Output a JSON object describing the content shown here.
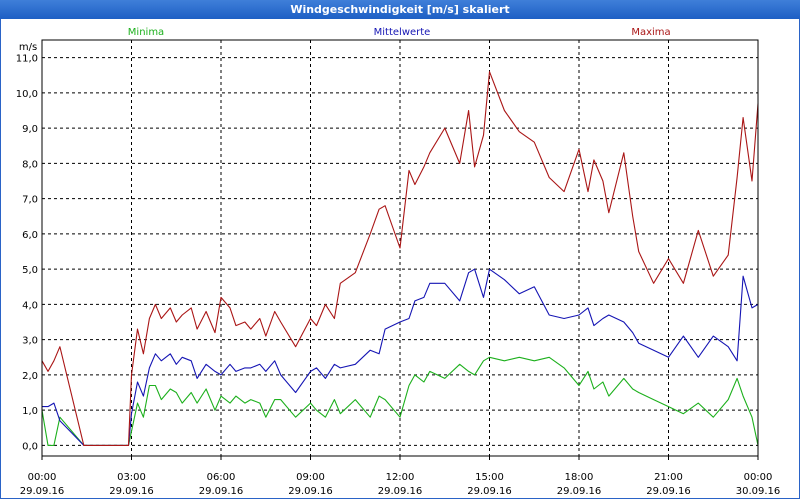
{
  "window": {
    "title": "Windgeschwindigkeit [m/s] skaliert"
  },
  "colors": {
    "minima": "#1db01d",
    "mittelwerte": "#1515b4",
    "maxima": "#aa1616",
    "grid": "#000000"
  },
  "chart_data": {
    "type": "line",
    "title": "Windgeschwindigkeit [m/s] skaliert",
    "ylabel": "m/s",
    "xlabel": "",
    "ylim": [
      -0.3,
      11.5
    ],
    "xlim": [
      0,
      24
    ],
    "grid": true,
    "legend": "top",
    "yticks": [
      "0,0",
      "1,0",
      "2,0",
      "3,0",
      "4,0",
      "5,0",
      "6,0",
      "7,0",
      "8,0",
      "9,0",
      "10,0",
      "11,0"
    ],
    "xticks": [
      {
        "time": "00:00",
        "date": "29.09.16"
      },
      {
        "time": "03:00",
        "date": "29.09.16"
      },
      {
        "time": "06:00",
        "date": "29.09.16"
      },
      {
        "time": "09:00",
        "date": "29.09.16"
      },
      {
        "time": "12:00",
        "date": "29.09.16"
      },
      {
        "time": "15:00",
        "date": "29.09.16"
      },
      {
        "time": "18:00",
        "date": "29.09.16"
      },
      {
        "time": "21:00",
        "date": "29.09.16"
      },
      {
        "time": "00:00",
        "date": "30.09.16"
      }
    ],
    "series": [
      {
        "name": "Minima",
        "x": [
          0,
          0.2,
          0.4,
          0.6,
          1.4,
          2.9,
          3.0,
          3.2,
          3.4,
          3.6,
          3.8,
          4.0,
          4.3,
          4.5,
          4.7,
          5.0,
          5.2,
          5.5,
          5.8,
          6.0,
          6.3,
          6.5,
          6.8,
          7.0,
          7.3,
          7.5,
          7.8,
          8.0,
          8.5,
          9.0,
          9.2,
          9.5,
          9.8,
          10.0,
          10.5,
          11.0,
          11.3,
          11.5,
          12.0,
          12.3,
          12.5,
          12.8,
          13.0,
          13.5,
          14.0,
          14.3,
          14.5,
          14.8,
          15.0,
          15.5,
          16.0,
          16.5,
          17.0,
          17.5,
          18.0,
          18.3,
          18.5,
          18.8,
          19.0,
          19.5,
          19.8,
          20.0,
          20.5,
          21.0,
          21.5,
          22.0,
          22.5,
          23.0,
          23.3,
          23.5,
          23.8,
          24.0
        ],
        "y": [
          1.0,
          0.0,
          0.0,
          0.8,
          0.0,
          0.0,
          0.4,
          1.2,
          0.8,
          1.7,
          1.7,
          1.3,
          1.6,
          1.5,
          1.2,
          1.5,
          1.2,
          1.6,
          1.0,
          1.4,
          1.2,
          1.4,
          1.2,
          1.3,
          1.2,
          0.8,
          1.3,
          1.3,
          0.8,
          1.2,
          1.0,
          0.8,
          1.3,
          0.9,
          1.3,
          0.8,
          1.4,
          1.3,
          0.8,
          1.7,
          2.0,
          1.8,
          2.1,
          1.9,
          2.3,
          2.1,
          2.0,
          2.4,
          2.5,
          2.4,
          2.5,
          2.4,
          2.5,
          2.2,
          1.7,
          2.1,
          1.6,
          1.8,
          1.4,
          1.9,
          1.6,
          1.5,
          1.3,
          1.1,
          0.9,
          1.2,
          0.8,
          1.3,
          1.9,
          1.4,
          0.8,
          0.0
        ]
      },
      {
        "name": "Mittelwerte",
        "x": [
          0,
          0.2,
          0.4,
          0.6,
          1.4,
          2.9,
          3.0,
          3.2,
          3.4,
          3.6,
          3.8,
          4.0,
          4.3,
          4.5,
          4.7,
          5.0,
          5.2,
          5.5,
          5.8,
          6.0,
          6.3,
          6.5,
          6.8,
          7.0,
          7.3,
          7.5,
          7.8,
          8.0,
          8.5,
          9.0,
          9.2,
          9.5,
          9.8,
          10.0,
          10.5,
          11.0,
          11.3,
          11.5,
          12.0,
          12.3,
          12.5,
          12.8,
          13.0,
          13.5,
          14.0,
          14.3,
          14.5,
          14.8,
          15.0,
          15.5,
          16.0,
          16.5,
          17.0,
          17.5,
          18.0,
          18.3,
          18.5,
          18.8,
          19.0,
          19.5,
          19.8,
          20.0,
          20.5,
          21.0,
          21.5,
          22.0,
          22.5,
          23.0,
          23.3,
          23.5,
          23.8,
          24.0
        ],
        "y": [
          1.1,
          1.1,
          1.2,
          0.7,
          0.0,
          0.0,
          0.9,
          1.8,
          1.4,
          2.2,
          2.6,
          2.4,
          2.6,
          2.3,
          2.5,
          2.4,
          1.9,
          2.3,
          2.1,
          2.0,
          2.3,
          2.1,
          2.2,
          2.2,
          2.3,
          2.1,
          2.4,
          2.0,
          1.5,
          2.1,
          2.2,
          1.9,
          2.3,
          2.2,
          2.3,
          2.7,
          2.6,
          3.3,
          3.5,
          3.6,
          4.1,
          4.2,
          4.6,
          4.6,
          4.1,
          4.9,
          5.0,
          4.2,
          5.0,
          4.7,
          4.3,
          4.5,
          3.7,
          3.6,
          3.7,
          3.9,
          3.4,
          3.6,
          3.7,
          3.5,
          3.2,
          2.9,
          2.7,
          2.5,
          3.1,
          2.5,
          3.1,
          2.8,
          2.4,
          4.8,
          3.9,
          4.0
        ]
      },
      {
        "name": "Maxima",
        "x": [
          0,
          0.2,
          0.4,
          0.6,
          1.4,
          2.9,
          3.0,
          3.2,
          3.4,
          3.6,
          3.8,
          4.0,
          4.3,
          4.5,
          4.7,
          5.0,
          5.2,
          5.5,
          5.8,
          6.0,
          6.3,
          6.5,
          6.8,
          7.0,
          7.3,
          7.5,
          7.8,
          8.0,
          8.5,
          9.0,
          9.2,
          9.5,
          9.8,
          10.0,
          10.5,
          11.0,
          11.3,
          11.5,
          12.0,
          12.3,
          12.5,
          12.8,
          13.0,
          13.5,
          14.0,
          14.3,
          14.5,
          14.8,
          15.0,
          15.5,
          16.0,
          16.5,
          17.0,
          17.5,
          18.0,
          18.3,
          18.5,
          18.8,
          19.0,
          19.5,
          19.8,
          20.0,
          20.5,
          21.0,
          21.5,
          22.0,
          22.5,
          23.0,
          23.3,
          23.5,
          23.8,
          24.0
        ],
        "y": [
          2.4,
          2.1,
          2.4,
          2.8,
          0.0,
          0.0,
          2.0,
          3.3,
          2.6,
          3.6,
          4.0,
          3.6,
          3.9,
          3.5,
          3.7,
          3.9,
          3.3,
          3.8,
          3.2,
          4.2,
          3.9,
          3.4,
          3.5,
          3.3,
          3.6,
          3.1,
          3.8,
          3.5,
          2.8,
          3.6,
          3.4,
          4.0,
          3.6,
          4.6,
          4.9,
          6.0,
          6.7,
          6.8,
          5.6,
          7.8,
          7.4,
          7.9,
          8.3,
          9.0,
          8.0,
          9.5,
          7.9,
          8.8,
          10.6,
          9.5,
          8.9,
          8.6,
          7.6,
          7.2,
          8.4,
          7.2,
          8.1,
          7.5,
          6.6,
          8.3,
          6.5,
          5.5,
          4.6,
          5.3,
          4.6,
          6.1,
          4.8,
          5.4,
          7.6,
          9.3,
          7.5,
          9.7
        ]
      }
    ]
  }
}
